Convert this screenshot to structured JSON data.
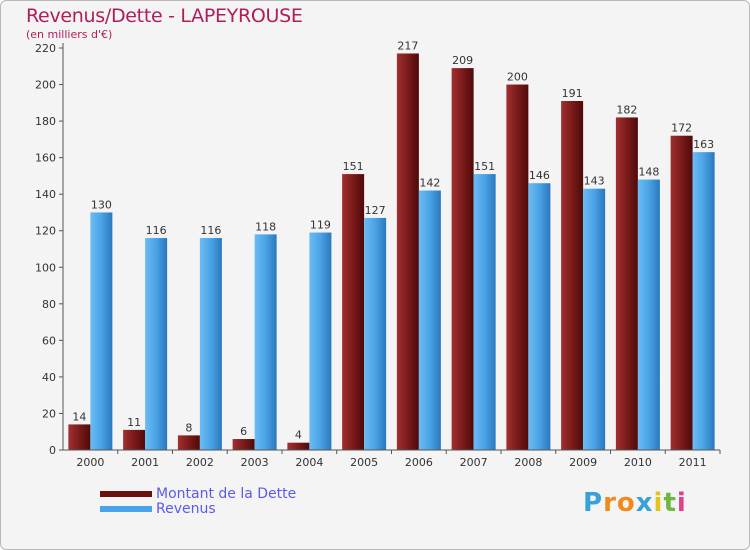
{
  "title": "Revenus/Dette - LAPEYROUSE",
  "subtitle": "(en milliers d'€)",
  "legend": {
    "debt_label": "Montant de la Dette",
    "revenue_label": "Revenus"
  },
  "brand": {
    "letters": [
      "P",
      "r",
      "o",
      "x",
      "i",
      "t",
      "i"
    ],
    "colors": [
      "#3aa0d8",
      "#f08a1c",
      "#f08a1c",
      "#3aa0d8",
      "#e8c21c",
      "#6cb83c",
      "#e0428a"
    ]
  },
  "colors": {
    "debt": "#7b1a1a",
    "revenue": "#4aa3e6",
    "title": "#b01e5a",
    "axis_text": "#333333"
  },
  "chart_data": {
    "type": "bar",
    "title": "Revenus/Dette - LAPEYROUSE",
    "subtitle": "(en milliers d'€)",
    "categories": [
      "2000",
      "2001",
      "2002",
      "2003",
      "2004",
      "2005",
      "2006",
      "2007",
      "2008",
      "2009",
      "2010",
      "2011"
    ],
    "series": [
      {
        "name": "Montant de la Dette",
        "values": [
          14,
          11,
          8,
          6,
          4,
          151,
          217,
          209,
          200,
          191,
          182,
          172
        ]
      },
      {
        "name": "Revenus",
        "values": [
          130,
          116,
          116,
          118,
          119,
          127,
          142,
          151,
          146,
          143,
          148,
          163
        ]
      }
    ],
    "ylim": [
      0,
      220
    ],
    "yticks": [
      0,
      20,
      40,
      60,
      80,
      100,
      120,
      140,
      160,
      180,
      200,
      220
    ],
    "grid": false,
    "legend_position": "bottom-left"
  }
}
